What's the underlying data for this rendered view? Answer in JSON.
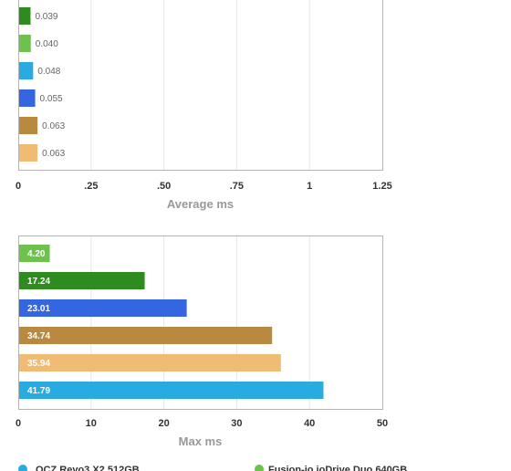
{
  "chart_data": [
    {
      "type": "bar",
      "orientation": "horizontal",
      "xlabel": "Average ms",
      "xlim": [
        0,
        1.25
      ],
      "ticks": [
        0,
        0.25,
        0.5,
        0.75,
        1,
        1.25
      ],
      "tick_labels": [
        "0",
        ".25",
        ".50",
        ".75",
        "1",
        "1.25"
      ],
      "grid": true,
      "bars": [
        {
          "value": 0.039,
          "label": "0.039",
          "color": "#2e8b1e"
        },
        {
          "value": 0.04,
          "label": "0.040",
          "color": "#6cc24a"
        },
        {
          "value": 0.048,
          "label": "0.048",
          "color": "#29abe2"
        },
        {
          "value": 0.055,
          "label": "0.055",
          "color": "#3366e0"
        },
        {
          "value": 0.063,
          "label": "0.063",
          "color": "#b8893f"
        },
        {
          "value": 0.063,
          "label": "0.063",
          "color": "#f0bb72"
        }
      ]
    },
    {
      "type": "bar",
      "orientation": "horizontal",
      "xlabel": "Max ms",
      "xlim": [
        0,
        50
      ],
      "ticks": [
        0,
        10,
        20,
        30,
        40,
        50
      ],
      "tick_labels": [
        "0",
        "10",
        "20",
        "30",
        "40",
        "50"
      ],
      "grid": true,
      "bars": [
        {
          "value": 4.2,
          "label": "4.20",
          "color": "#6cc24a"
        },
        {
          "value": 17.24,
          "label": "17.24",
          "color": "#2e8b1e"
        },
        {
          "value": 23.01,
          "label": "23.01",
          "color": "#3366e0"
        },
        {
          "value": 34.74,
          "label": "34.74",
          "color": "#b8893f"
        },
        {
          "value": 35.94,
          "label": "35.94",
          "color": "#f0bb72"
        },
        {
          "value": 41.79,
          "label": "41.79",
          "color": "#29abe2"
        }
      ]
    }
  ],
  "legend": [
    {
      "name": "OCZ Revo3 X2 512GB",
      "color": "#29abe2"
    },
    {
      "name": "Fusion-io ioDrive Duo 640GB",
      "color": "#6cc24a"
    }
  ]
}
